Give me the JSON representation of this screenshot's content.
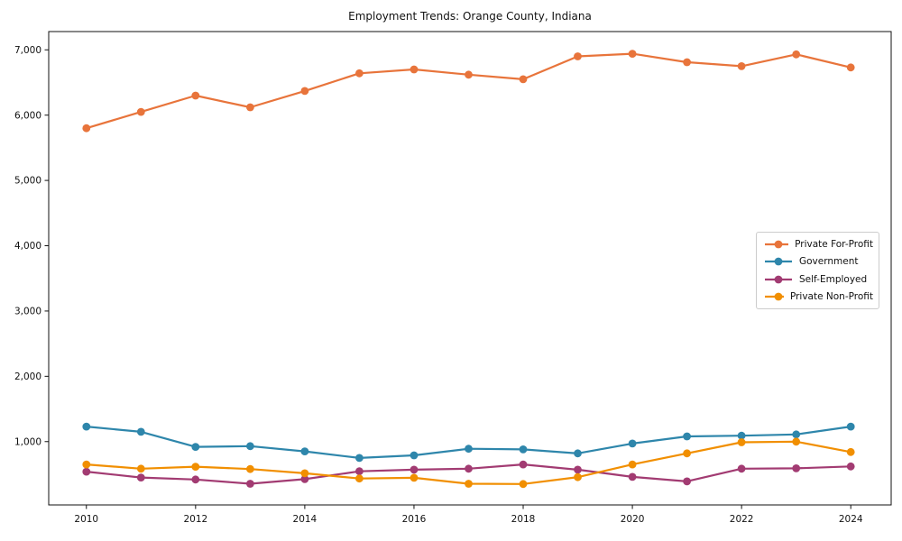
{
  "chart_data": {
    "type": "line",
    "title": "Employment Trends: Orange County, Indiana",
    "xlabel": "",
    "ylabel": "",
    "grid": false,
    "legend_position": "right-middle",
    "xlim": [
      2009.31,
      2024.74
    ],
    "ylim": [
      30,
      7280
    ],
    "x": [
      2010,
      2011,
      2012,
      2013,
      2014,
      2015,
      2016,
      2017,
      2018,
      2019,
      2020,
      2021,
      2022,
      2023,
      2024
    ],
    "xticks": {
      "values": [
        2010,
        2012,
        2014,
        2016,
        2018,
        2020,
        2022,
        2024
      ],
      "labels": [
        "2010",
        "2012",
        "2014",
        "2016",
        "2018",
        "2020",
        "2022",
        "2024"
      ]
    },
    "yticks": {
      "values": [
        1000,
        2000,
        3000,
        4000,
        5000,
        6000,
        7000
      ],
      "labels": [
        "1,000",
        "2,000",
        "3,000",
        "4,000",
        "5,000",
        "6,000",
        "7,000"
      ]
    },
    "series": [
      {
        "name": "Private For-Profit",
        "color": "#E8743B",
        "values": [
          5800,
          6050,
          6300,
          6120,
          6370,
          6640,
          6700,
          6620,
          6550,
          6900,
          6940,
          6810,
          6750,
          6930,
          6730
        ]
      },
      {
        "name": "Government",
        "color": "#2E86AB",
        "values": [
          1230,
          1150,
          920,
          930,
          850,
          750,
          790,
          890,
          880,
          820,
          970,
          1080,
          1090,
          1110,
          1230
        ]
      },
      {
        "name": "Self-Employed",
        "color": "#A23B72",
        "values": [
          540,
          450,
          420,
          355,
          425,
          545,
          570,
          585,
          650,
          570,
          460,
          390,
          585,
          590,
          620
        ]
      },
      {
        "name": "Private Non-Profit",
        "color": "#F18F01",
        "values": [
          650,
          585,
          615,
          580,
          515,
          435,
          445,
          355,
          350,
          455,
          650,
          820,
          990,
          1000,
          840
        ]
      }
    ]
  }
}
